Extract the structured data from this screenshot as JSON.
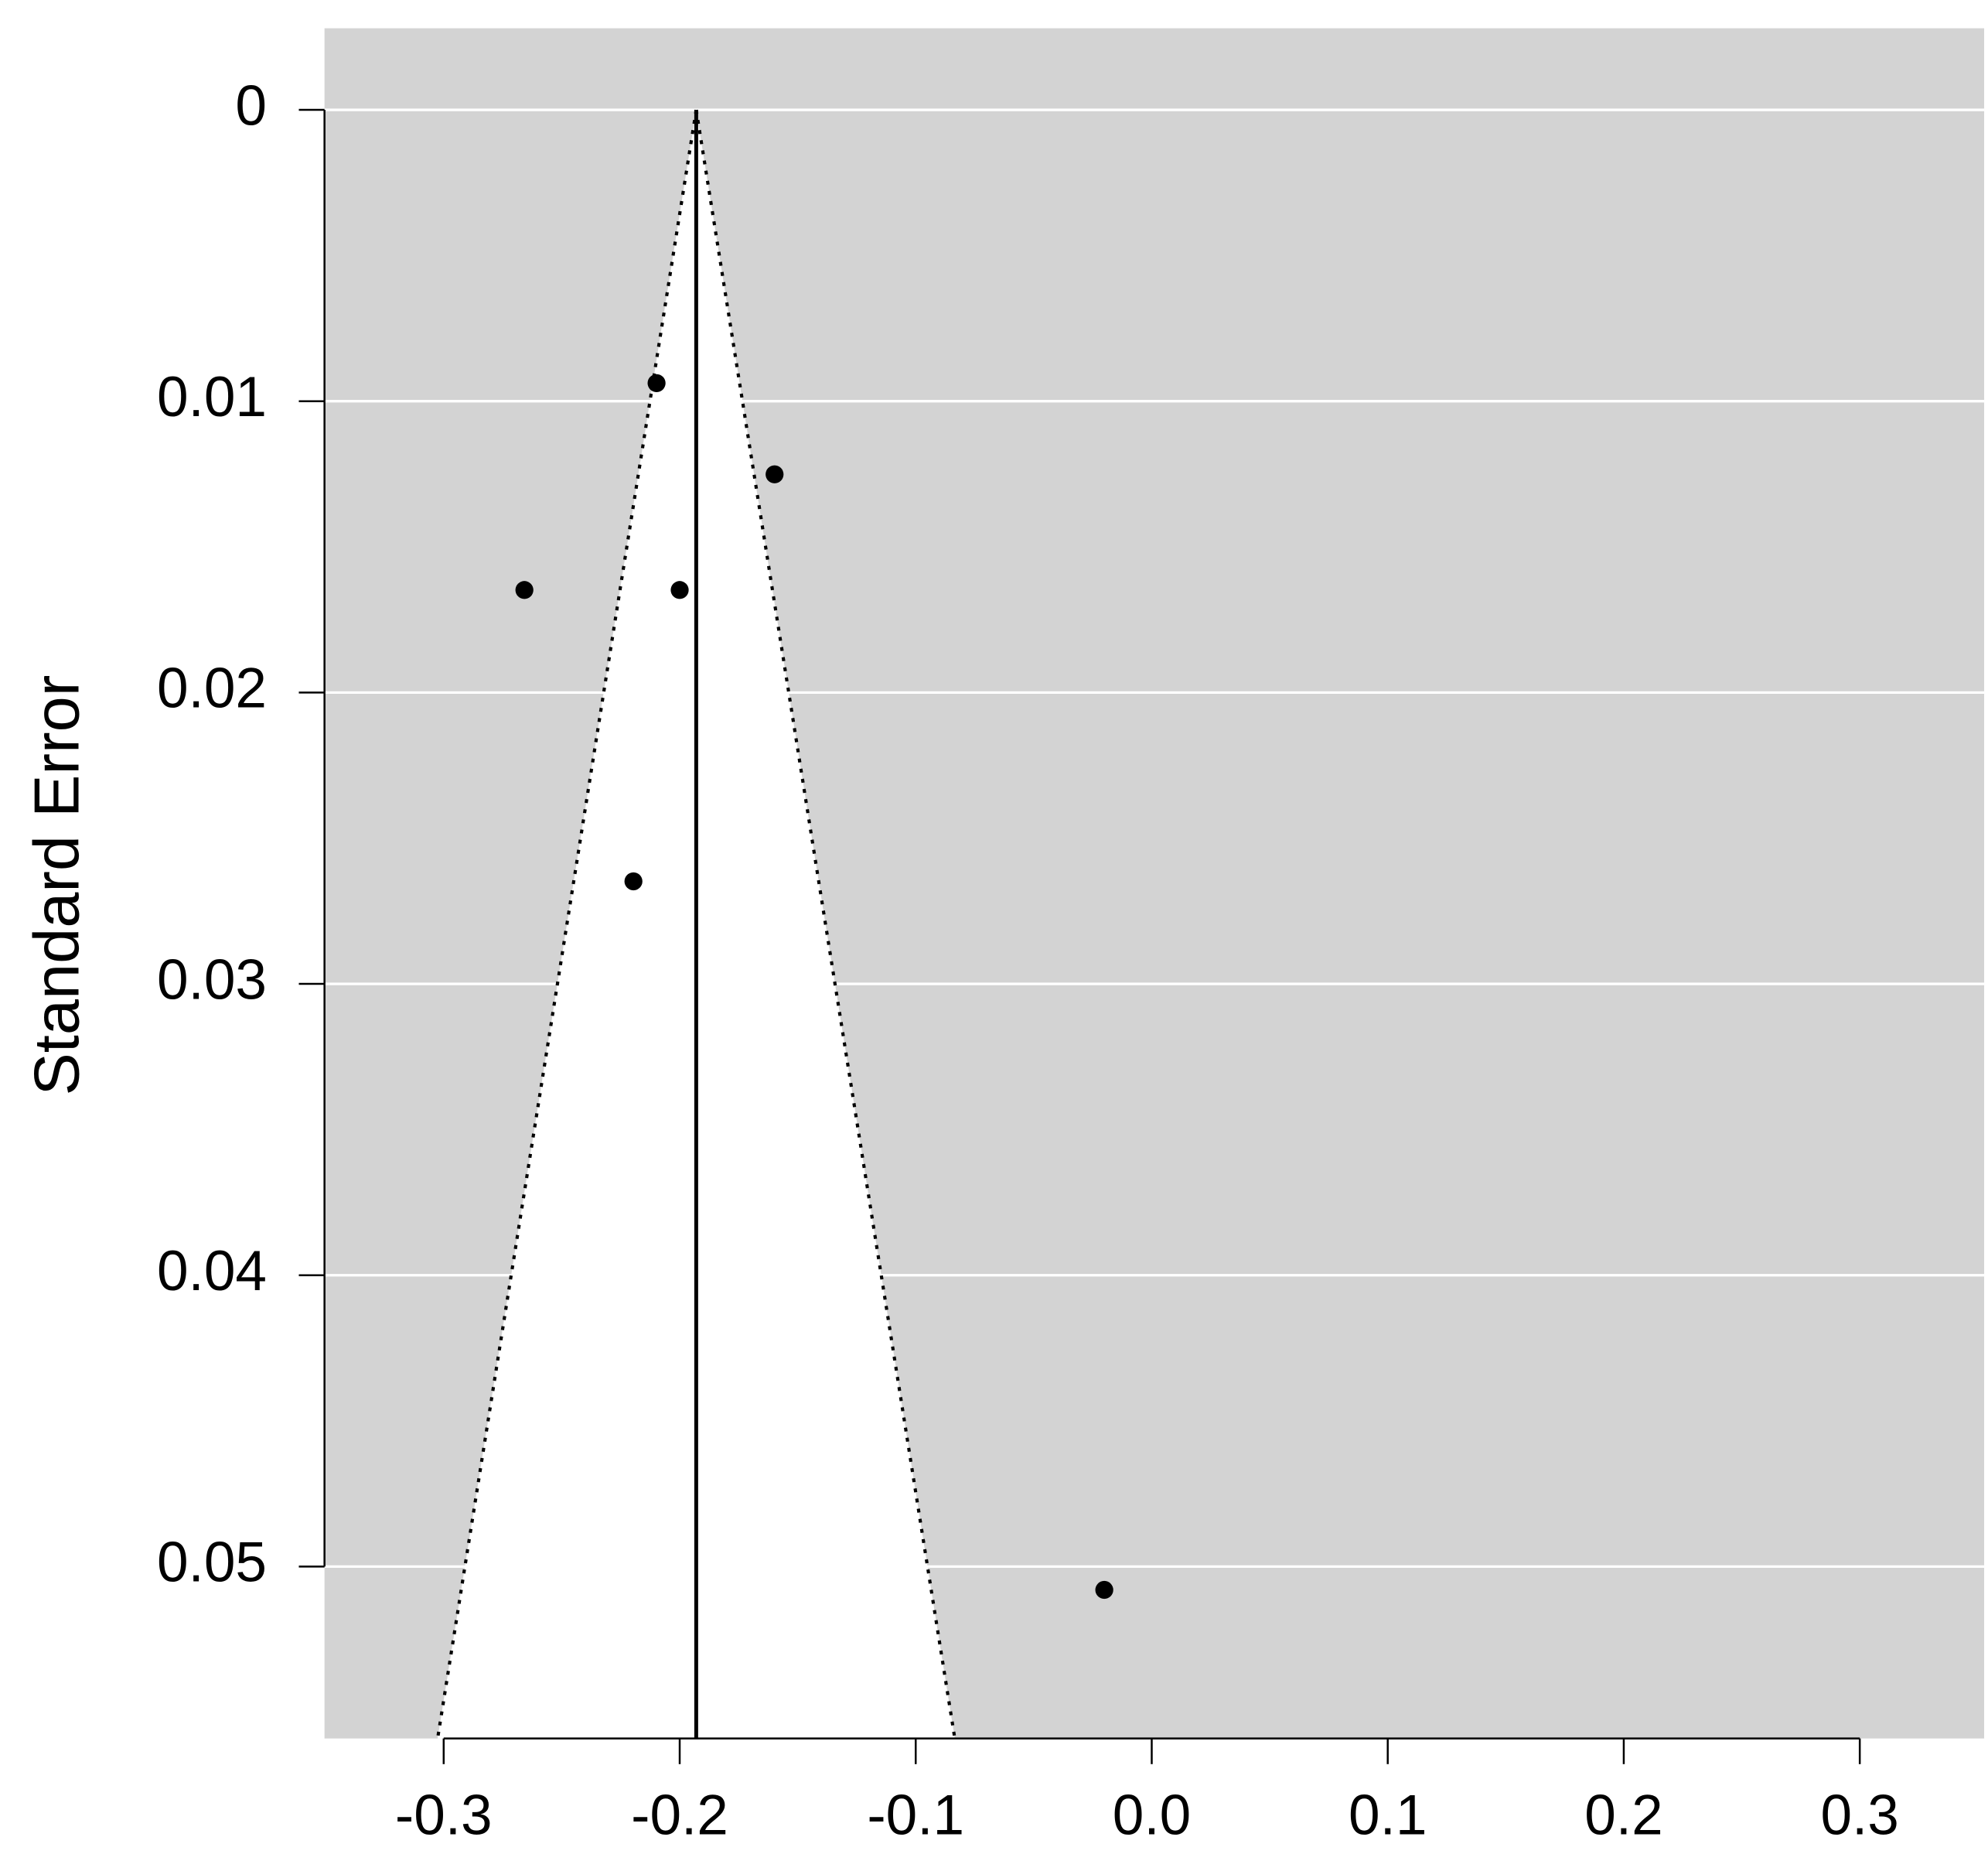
{
  "chart_data": {
    "type": "funnel",
    "y_label": "Standard Error",
    "x": [
      -0.2658,
      -0.2098,
      -0.1598,
      -0.2,
      -0.2196,
      -0.0201
    ],
    "values": [
      0.01648,
      0.00938,
      0.01251,
      0.01648,
      0.02648,
      0.0508
    ],
    "color": "#000000",
    "pooled_estimate": -0.193,
    "ci_z": 1.96,
    "xlim": [
      -0.3505,
      0.3527
    ],
    "ylim": [
      -0.0028,
      0.0559
    ],
    "y_reversed": true,
    "xticks": [
      -0.3,
      -0.2,
      -0.1,
      {
        "value": 0,
        "label": "0.0"
      },
      0.1,
      0.2,
      0.3
    ],
    "yticks": [
      0,
      0.01,
      0.02,
      0.03,
      0.04,
      0.05
    ],
    "grid": true,
    "background": "#d3d3d3"
  }
}
